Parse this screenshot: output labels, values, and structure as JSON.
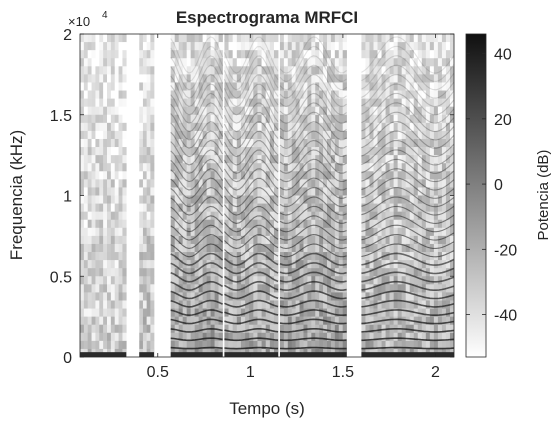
{
  "chart_data": {
    "type": "heatmap",
    "title": "Espectrograma MRFCI",
    "xlabel": "Tempo (s)",
    "ylabel": "Frequencia (kHz)",
    "y_exponent_label": "×10",
    "y_exponent_power": "4",
    "xlim": [
      0.08,
      2.1
    ],
    "ylim": [
      0,
      2
    ],
    "x_ticks": [
      0.5,
      1,
      1.5,
      2
    ],
    "x_tick_labels": [
      "0.5",
      "1",
      "1.5",
      "2"
    ],
    "y_ticks": [
      0,
      0.5,
      1,
      1.5,
      2
    ],
    "y_tick_labels": [
      "0",
      "0.5",
      "1",
      "1.5",
      "2"
    ],
    "colorbar": {
      "label": "Potencia (dB)",
      "range": [
        -53,
        46
      ],
      "ticks": [
        -40,
        -20,
        0,
        20,
        40
      ],
      "tick_labels": [
        "-40",
        "-20",
        "0",
        "20",
        "40"
      ],
      "colormap": "gray-reversed"
    },
    "voiced_segments": [
      {
        "start": 0.08,
        "end": 0.33,
        "intensity": 0.3
      },
      {
        "start": 0.4,
        "end": 0.48,
        "intensity": 0.35
      },
      {
        "start": 0.57,
        "end": 0.85,
        "intensity": 0.55
      },
      {
        "start": 0.86,
        "end": 1.15,
        "intensity": 0.5
      },
      {
        "start": 1.16,
        "end": 1.52,
        "intensity": 0.55
      },
      {
        "start": 1.6,
        "end": 2.1,
        "intensity": 0.45
      }
    ],
    "grid": false
  }
}
